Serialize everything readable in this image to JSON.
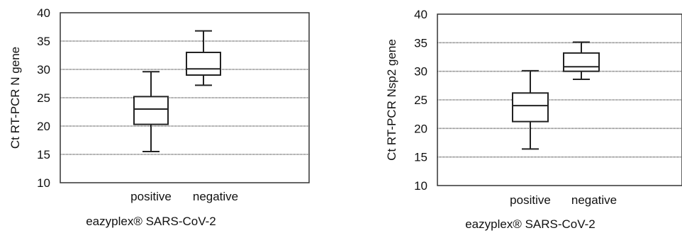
{
  "chart_data": [
    {
      "type": "boxplot",
      "ylabel": "Ct RT-PCR N gene",
      "xlabel": "eazyplex® SARS-CoV-2",
      "categories": [
        "positive",
        "negative"
      ],
      "ylim": [
        10,
        40
      ],
      "yticks": [
        10,
        15,
        20,
        25,
        30,
        35,
        40
      ],
      "grid": true,
      "boxes": [
        {
          "category": "positive",
          "min": 15.5,
          "q1": 20.3,
          "median": 23.0,
          "q3": 25.2,
          "max": 29.6
        },
        {
          "category": "negative",
          "min": 27.2,
          "q1": 29.0,
          "median": 30.1,
          "q3": 33.0,
          "max": 36.8
        }
      ]
    },
    {
      "type": "boxplot",
      "ylabel": "Ct RT-PCR Nsp2 gene",
      "xlabel": "eazyplex® SARS-CoV-2",
      "categories": [
        "positive",
        "negative"
      ],
      "ylim": [
        10,
        40
      ],
      "yticks": [
        10,
        15,
        20,
        25,
        30,
        35,
        40
      ],
      "grid": true,
      "boxes": [
        {
          "category": "positive",
          "min": 16.4,
          "q1": 21.2,
          "median": 24.0,
          "q3": 26.2,
          "max": 30.1
        },
        {
          "category": "negative",
          "min": 28.6,
          "q1": 30.0,
          "median": 30.8,
          "q3": 33.2,
          "max": 35.1
        }
      ]
    }
  ]
}
